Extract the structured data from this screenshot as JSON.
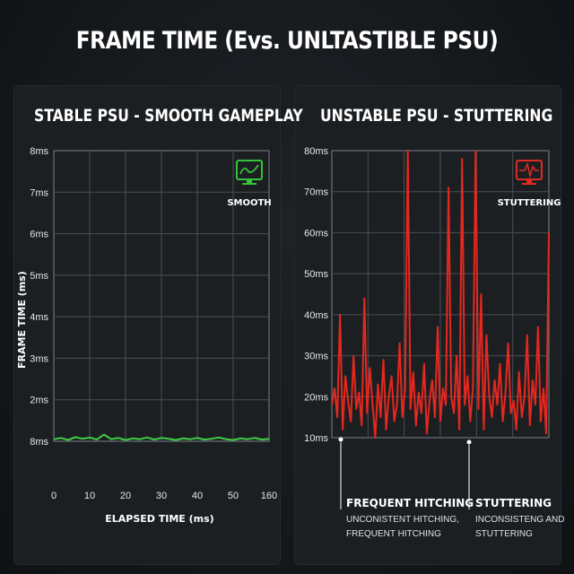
{
  "title": "FRAME TIME (Evs. UNLTASTIBLE PSU)",
  "chart_data": [
    {
      "type": "line",
      "title": "STABLE PSU - SMOOTH GAMEPLAY",
      "xlabel": "ELAPSED TIME (ms)",
      "ylabel": "FRAME TIME (ms)",
      "x_ticks": [
        "0",
        "10",
        "20",
        "30",
        "40",
        "50",
        "160"
      ],
      "y_ticks": [
        "8ms",
        "2ms",
        "3ms",
        "4ms",
        "5ms",
        "6ms",
        "7ms",
        "8ms"
      ],
      "xlim": [
        0,
        60
      ],
      "ylim": [
        0,
        7
      ],
      "grid": true,
      "badge": {
        "label": "SMOOTH",
        "icon": "monitor-smooth-icon",
        "color": "#35c33a"
      },
      "series": [
        {
          "color": "#3ecf45",
          "x": [
            0,
            2,
            4,
            6,
            8,
            10,
            12,
            14,
            16,
            18,
            20,
            22,
            24,
            26,
            28,
            30,
            32,
            34,
            36,
            38,
            40,
            42,
            44,
            46,
            48,
            50,
            52,
            54,
            56,
            58,
            60
          ],
          "values": [
            0.05,
            0.08,
            0.03,
            0.1,
            0.06,
            0.09,
            0.04,
            0.16,
            0.05,
            0.08,
            0.03,
            0.07,
            0.05,
            0.09,
            0.04,
            0.08,
            0.06,
            0.03,
            0.07,
            0.05,
            0.08,
            0.04,
            0.06,
            0.09,
            0.05,
            0.03,
            0.07,
            0.05,
            0.08,
            0.04,
            0.06
          ]
        }
      ]
    },
    {
      "type": "line",
      "title": "UNSTABLE PSU - STUTTERING",
      "y_ticks": [
        "10ms",
        "20ms",
        "30ms",
        "40ms",
        "50ms",
        "60ms",
        "70ms",
        "80ms"
      ],
      "ylim": [
        10,
        80
      ],
      "grid": true,
      "badge": {
        "label": "STUTTERING",
        "icon": "monitor-stutter-icon",
        "color": "#e02a22"
      },
      "series": [
        {
          "color": "#e4281f",
          "x": [
            0,
            1,
            2,
            3,
            4,
            5,
            6,
            7,
            8,
            9,
            10,
            11,
            12,
            13,
            14,
            15,
            16,
            17,
            18,
            19,
            20,
            21,
            22,
            23,
            24,
            25,
            26,
            27,
            28,
            29,
            30,
            31,
            32,
            33,
            34,
            35,
            36,
            37,
            38,
            39,
            40,
            41,
            42,
            43,
            44,
            45,
            46,
            47,
            48,
            49,
            50,
            51,
            52,
            53,
            54,
            55,
            56,
            57,
            58,
            59,
            60,
            61,
            62,
            63,
            64,
            65,
            66,
            67,
            68,
            69,
            70,
            71,
            72,
            73,
            74,
            75,
            76,
            77,
            78,
            79,
            80
          ],
          "values": [
            18,
            22,
            15,
            40,
            12,
            25,
            19,
            14,
            30,
            17,
            21,
            13,
            44,
            16,
            27,
            18,
            10,
            23,
            15,
            29,
            12,
            20,
            25,
            14,
            18,
            33,
            15,
            22,
            80,
            17,
            26,
            13,
            21,
            16,
            28,
            11,
            19,
            24,
            15,
            37,
            14,
            22,
            18,
            71,
            20,
            16,
            30,
            12,
            78,
            18,
            25,
            14,
            22,
            80,
            17,
            45,
            12,
            35,
            20,
            15,
            24,
            18,
            28,
            14,
            21,
            33,
            16,
            19,
            12,
            26,
            15,
            20,
            35,
            13,
            24,
            18,
            37,
            14,
            22,
            11,
            60
          ]
        }
      ]
    }
  ],
  "annotations": [
    {
      "title": "FREQUENT HITCHING",
      "sub1": "UNCONISTENT HITCHING,",
      "sub2": "FREQUENT HITCHING"
    },
    {
      "title": "STUTTERING",
      "sub1": "INCONSISTENG AND",
      "sub2": "STUTTERING"
    }
  ]
}
